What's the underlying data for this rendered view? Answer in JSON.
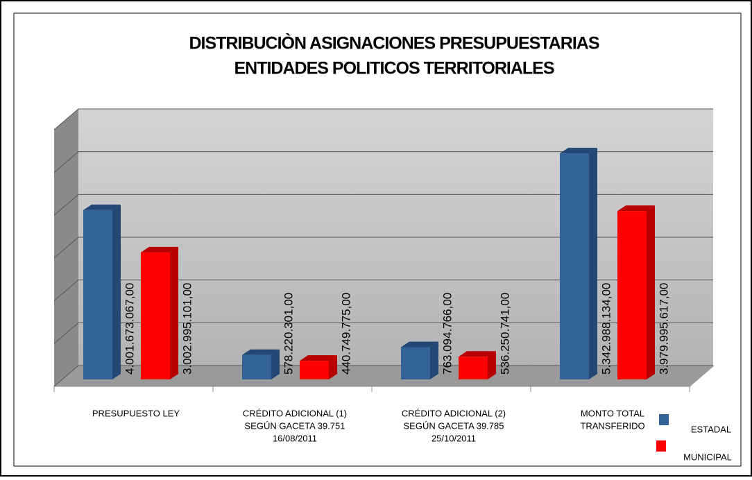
{
  "chart_data": {
    "type": "bar3d",
    "title": [
      "DISTRIBUCIÒN ASIGNACIONES PRESUPUESTARIAS",
      "ENTIDADES POLITICOS TERRITORIALES"
    ],
    "categories": [
      [
        "PRESUPUESTO LEY"
      ],
      [
        "CRÉDITO ADICIONAL (1)",
        "SEGÚN GACETA  39.751",
        "16/08/2011"
      ],
      [
        "CRÉDITO ADICIONAL (2)",
        "SEGÚN GACETA  39.785",
        "25/10/2011"
      ],
      [
        "MONTO TOTAL",
        "TRANSFERIDO"
      ]
    ],
    "series": [
      {
        "name": "ESTADAL",
        "color": "#336299",
        "side": "#244873",
        "values": [
          4001673067,
          578220301,
          763094766,
          5342988134
        ],
        "value_labels": [
          "4.001.673.067,00",
          "578.220.301,00",
          "763.094.766,00",
          "5.342.988.134,00"
        ]
      },
      {
        "name": "MUNICIPAL",
        "color": "#ff0000",
        "side": "#b80000",
        "values": [
          3002995101,
          440749775,
          536250741,
          3979995617
        ],
        "value_labels": [
          "3.002.995.101,00",
          "440.749.775,00",
          "536.250.741,00",
          "3.979.995.617,00"
        ]
      }
    ],
    "ylim": [
      0,
      6000000000
    ],
    "yticks": [
      0,
      1000000000,
      2000000000,
      3000000000,
      4000000000,
      5000000000,
      6000000000
    ],
    "grid": true
  }
}
